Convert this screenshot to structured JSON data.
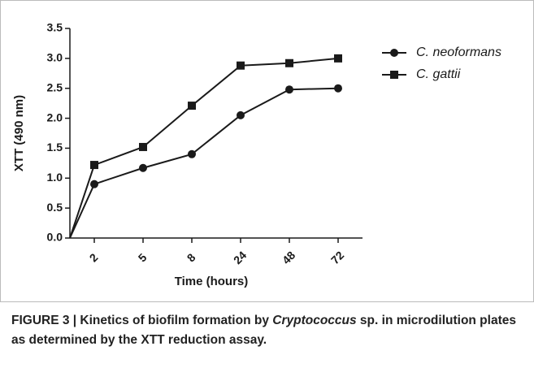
{
  "chart_data": {
    "type": "line",
    "y_label": "XTT (490 nm)",
    "x_label": "Time (hours)",
    "categories": [
      null,
      "2",
      "5",
      "8",
      "24",
      "48",
      "72"
    ],
    "series": [
      {
        "name": "C. neoformans",
        "color": "#1a1a1a",
        "marker": "circle",
        "values": [
          0,
          0.9,
          1.17,
          1.4,
          2.05,
          2.48,
          2.5
        ]
      },
      {
        "name": "C. gattii",
        "color": "#1a1a1a",
        "marker": "square",
        "values": [
          0,
          1.22,
          1.52,
          2.21,
          2.88,
          2.92,
          3.0
        ]
      }
    ],
    "ylim": [
      0,
      3.5
    ],
    "yticks": [
      {
        "value": 0,
        "label": "0.0"
      },
      0.5,
      {
        "value": 1,
        "label": "1.0"
      },
      1.5,
      {
        "value": 2,
        "label": "2.0"
      },
      2.5,
      {
        "value": 3,
        "label": "3.0"
      },
      3.5
    ],
    "legend": "top-right"
  },
  "caption": {
    "prefix": "FIGURE 3 | Kinetics of biofilm formation by ",
    "italic": "Cryptococcus",
    "suffix": " sp. in microdilution plates as determined by the XTT reduction assay."
  }
}
